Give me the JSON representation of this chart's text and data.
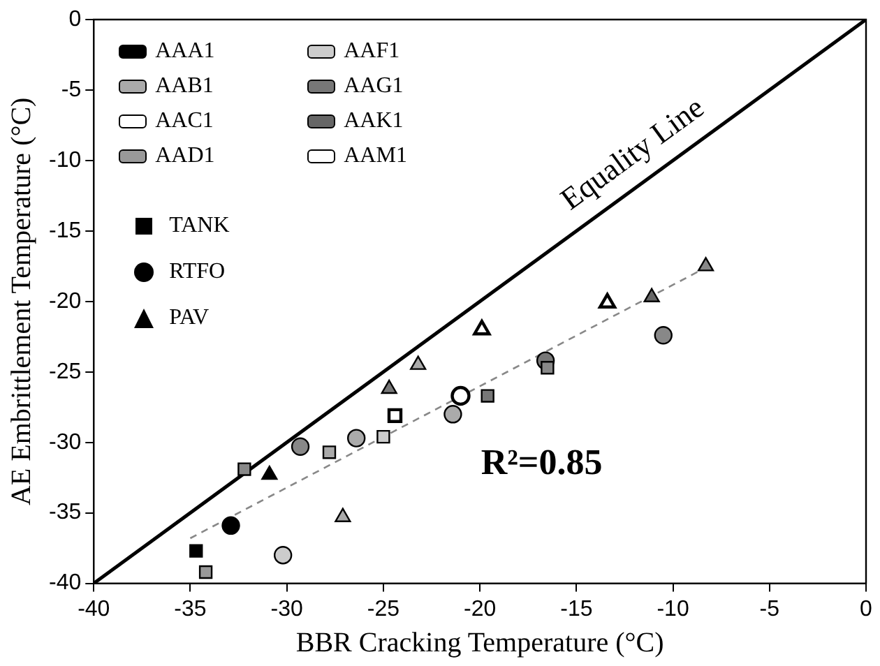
{
  "chart_data": {
    "type": "scatter",
    "xlabel": "BBR Cracking Temperature (°C)",
    "ylabel": "AE Embrittlement Temperature (°C)",
    "xlim": [
      -40,
      0
    ],
    "xticks": [
      -40,
      -35,
      -30,
      -25,
      -20,
      -15,
      -10,
      -5,
      0
    ],
    "ylim": [
      -40,
      0
    ],
    "yticks": [
      -40,
      -35,
      -30,
      -25,
      -20,
      -15,
      -10,
      -5,
      0
    ],
    "grid": false,
    "legend": "top left",
    "series": [
      {
        "name": "AAA1",
        "color": "#000000"
      },
      {
        "name": "AAB1",
        "color": "#aaaaaa"
      },
      {
        "name": "AAC1",
        "color": "#ffffff"
      },
      {
        "name": "AAD1",
        "color": "#999999"
      },
      {
        "name": "AAF1",
        "color": "#cccccc"
      },
      {
        "name": "AAG1",
        "color": "#777777"
      },
      {
        "name": "AAK1",
        "color": "#666666"
      },
      {
        "name": "AAM1",
        "color": "#ffffff"
      },
      {
        "name": "TANK",
        "marker": "square",
        "color": "#000000",
        "x": [
          -34.7,
          -34.2,
          -32.2,
          -27.8,
          -25.0,
          -24.4,
          -19.6,
          -16.5
        ],
        "values": [
          -37.7,
          -39.2,
          -31.9,
          -30.7,
          -29.6,
          -28.1,
          -26.7,
          -24.7
        ],
        "colors": [
          "#000000",
          "#999999",
          "#888888",
          "#aaaaaa",
          "#cccccc",
          "#ffffff",
          "#777777",
          "#888888"
        ]
      },
      {
        "name": "RTFO",
        "marker": "circle",
        "color": "#000000",
        "x": [
          -32.9,
          -30.2,
          -29.3,
          -26.4,
          -21.4,
          -21.0,
          -16.6,
          -10.5
        ],
        "values": [
          -35.9,
          -38.0,
          -30.3,
          -29.7,
          -28.0,
          -26.7,
          -24.2,
          -22.4
        ],
        "colors": [
          "#000000",
          "#cccccc",
          "#888888",
          "#aaaaaa",
          "#aaaaaa",
          "#ffffff",
          "#777777",
          "#888888"
        ]
      },
      {
        "name": "PAV",
        "marker": "triangle",
        "color": "#000000",
        "x": [
          -30.9,
          -27.1,
          -24.7,
          -23.2,
          -19.9,
          -13.4,
          -11.1,
          -8.3
        ],
        "values": [
          -32.3,
          -35.3,
          -26.2,
          -24.5,
          -22.0,
          -20.1,
          -19.7,
          -17.5
        ],
        "colors": [
          "#000000",
          "#aaaaaa",
          "#777777",
          "#aaaaaa",
          "#ffffff",
          "#ffffff",
          "#666666",
          "#888888"
        ]
      },
      {
        "type": "line",
        "color": "#000000",
        "line_style": "solid",
        "x": [
          -40,
          0
        ],
        "values": [
          -40,
          0
        ]
      },
      {
        "type": "line",
        "color": "#888888",
        "line_style": "dashed",
        "x": [
          -35,
          -8.3
        ],
        "values": [
          -36.8,
          -17.6
        ]
      }
    ],
    "annotations": [
      "Equality Line",
      "R²=0.85"
    ]
  }
}
